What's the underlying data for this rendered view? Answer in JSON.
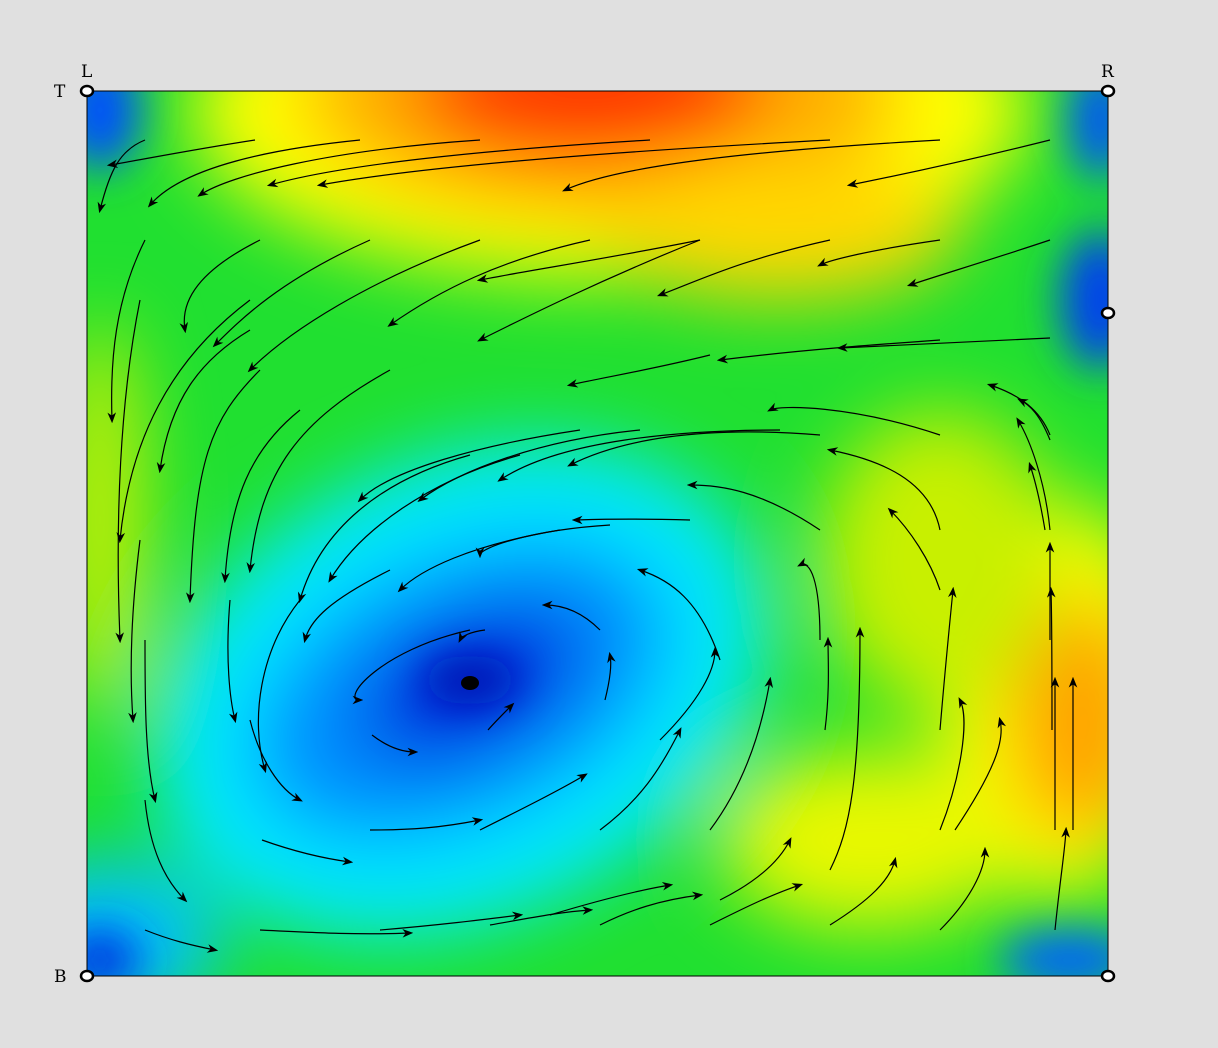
{
  "figure": {
    "title": "",
    "corner_labels": {
      "top_left_upper": "L",
      "top_left_side": "T",
      "top_right": "R",
      "bottom_left": "B"
    },
    "colormap": [
      "#0022dd",
      "#0088ff",
      "#00e0ff",
      "#00e060",
      "#30d000",
      "#c8f000",
      "#ffff00",
      "#ffb000",
      "#ff6000",
      "#ff1000"
    ],
    "vortex_center_marker": "filled-dot",
    "streamline_color": "#000000",
    "boundary_markers": [
      "top-left",
      "top-right",
      "right-mid",
      "bottom-left",
      "bottom-right"
    ]
  }
}
